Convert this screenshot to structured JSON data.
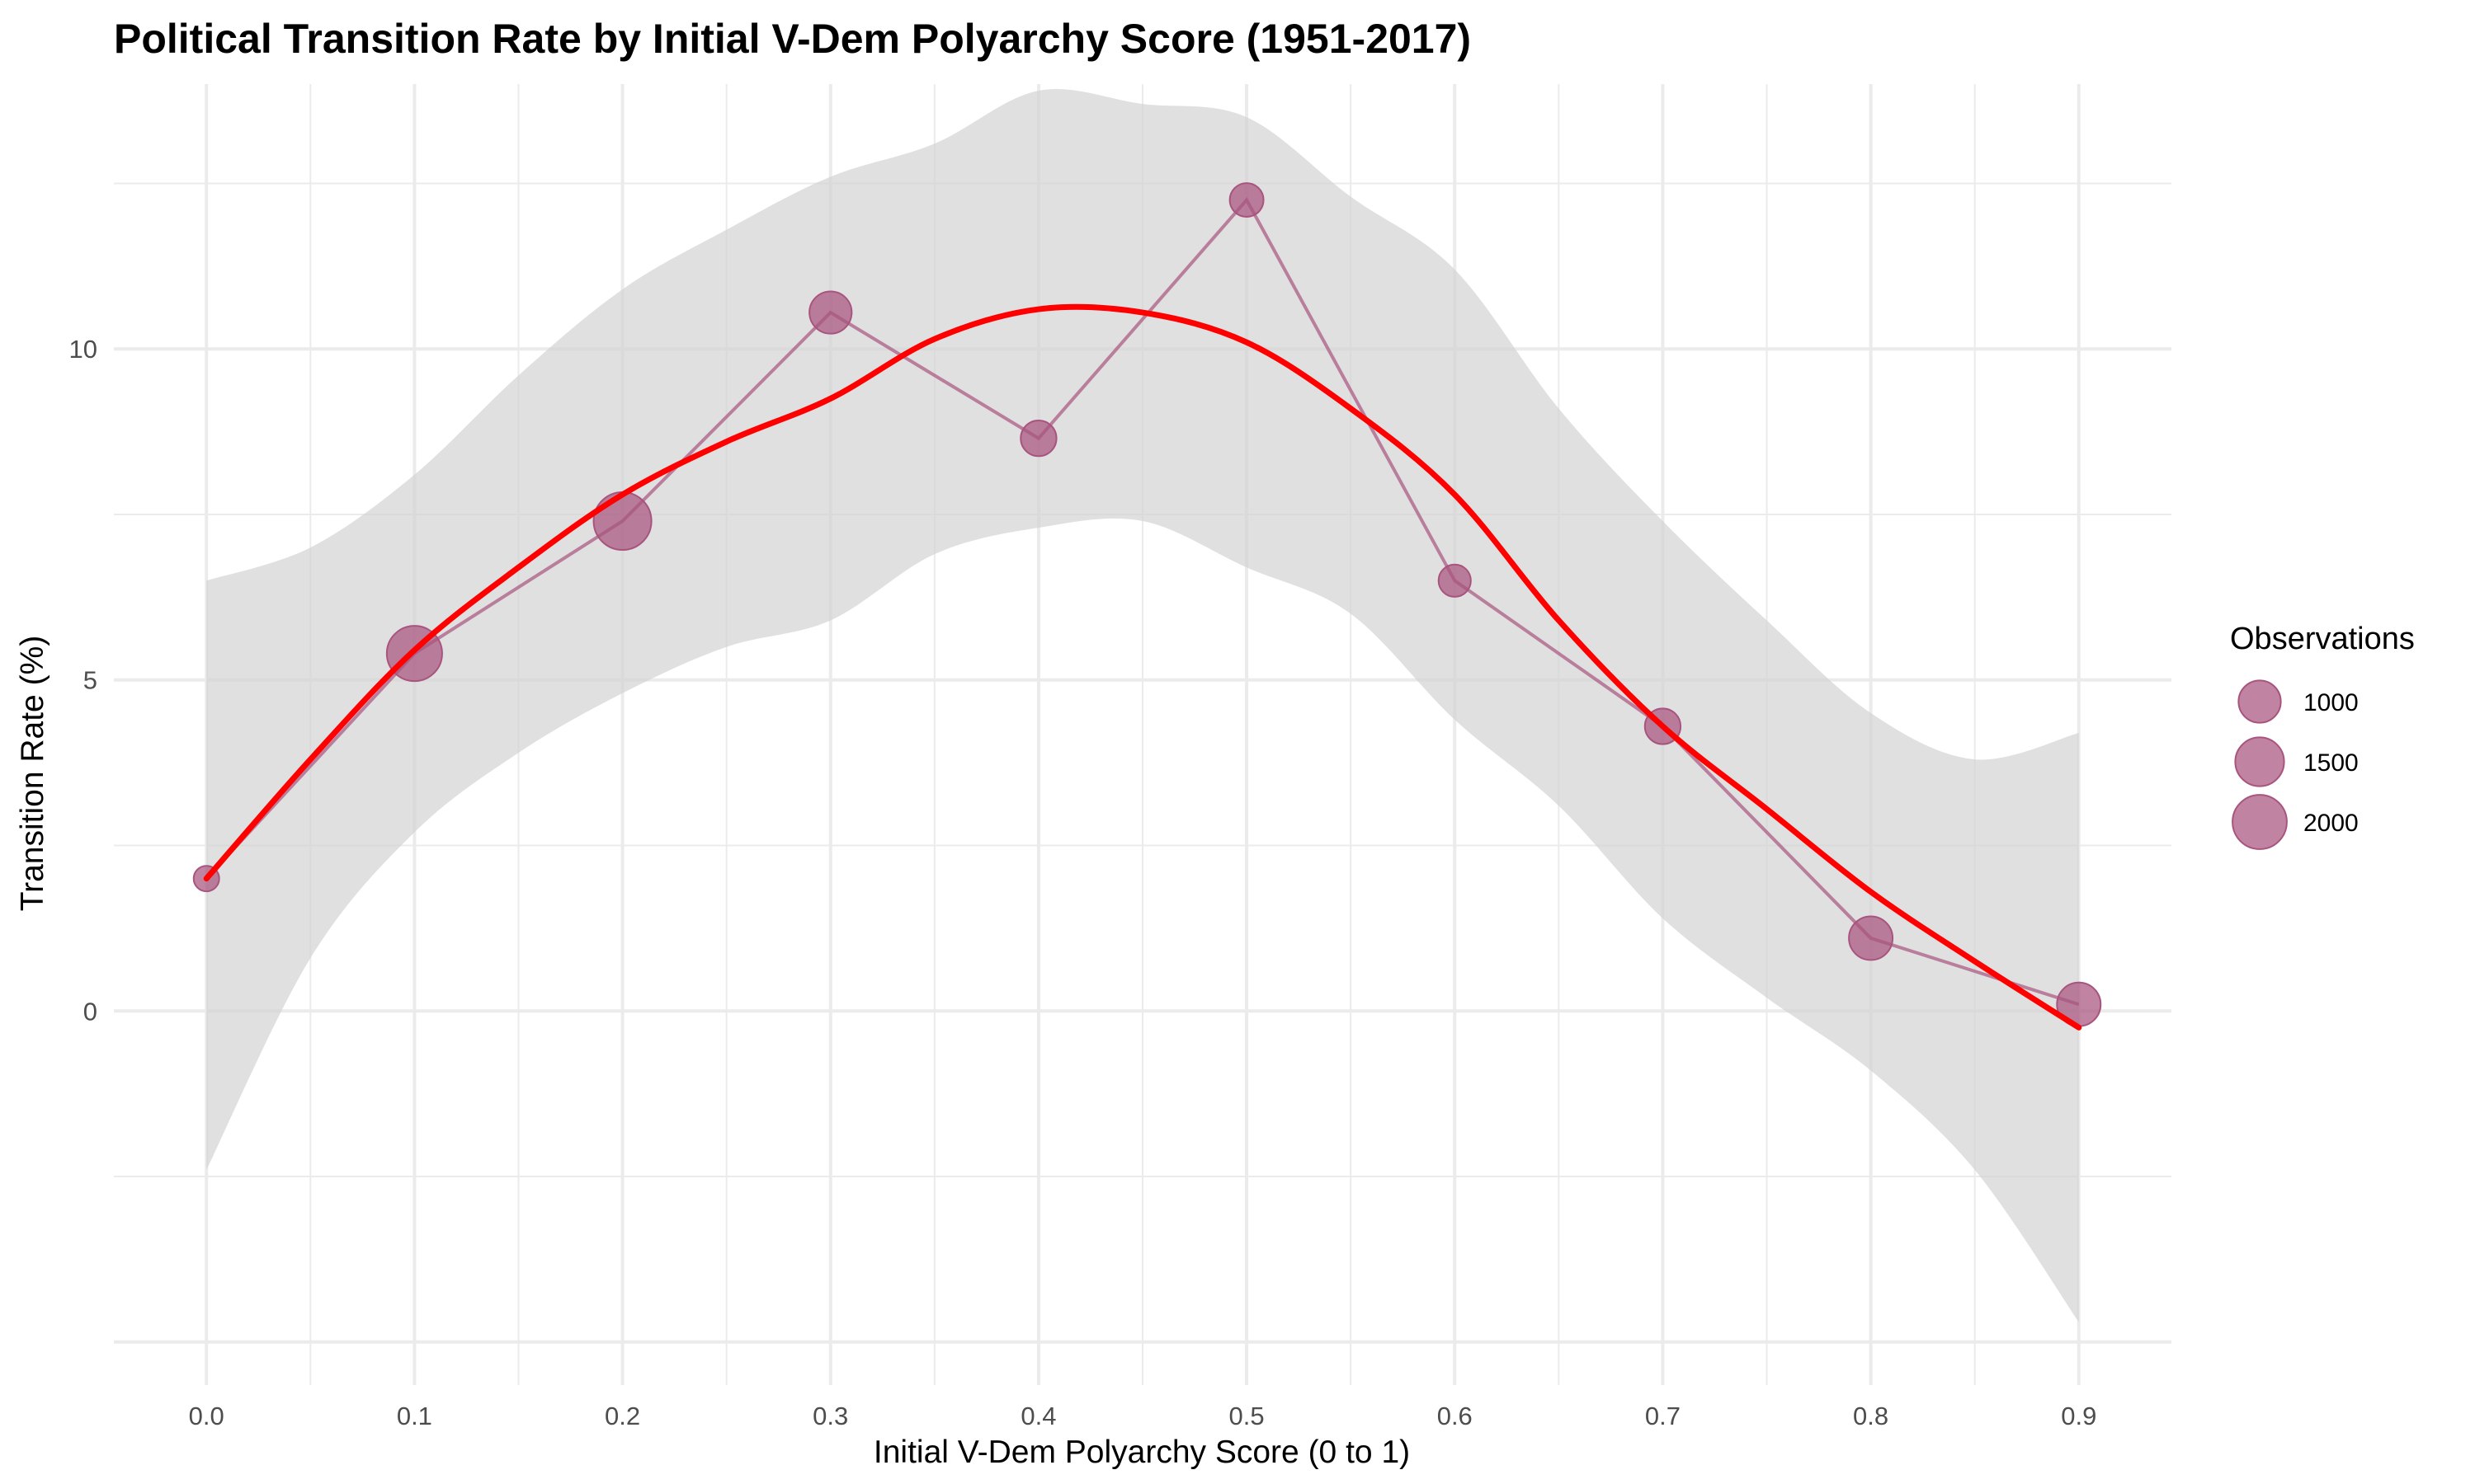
{
  "chart_data": {
    "type": "line",
    "title": "Political Transition Rate by Initial V-Dem Polyarchy Score (1951-2017)",
    "xlabel": "Initial V-Dem Polyarchy Score (0 to 1)",
    "ylabel": "Transition Rate (%)",
    "xlim": [
      -0.0445,
      0.9445
    ],
    "ylim": [
      -5.65,
      14.0
    ],
    "x_ticks": [
      "0.0",
      "0.1",
      "0.2",
      "0.3",
      "0.4",
      "0.5",
      "0.6",
      "0.7",
      "0.8",
      "0.9"
    ],
    "y_ticks": [
      "0",
      "5",
      "10"
    ],
    "grid": true,
    "legend_position": "right",
    "colors": {
      "points": "#a8547e",
      "connector": "#a8547e",
      "smooth": "#ff0000",
      "ribbon": "#d3d3d3",
      "grid": "#ebebeb"
    },
    "series": [
      {
        "kind": "points",
        "x": [
          0.0,
          0.1,
          0.2,
          0.3,
          0.4,
          0.5,
          0.6,
          0.7,
          0.8,
          0.9
        ],
        "y": [
          2.0,
          5.4,
          7.4,
          10.55,
          8.65,
          12.25,
          6.5,
          4.3,
          1.1,
          0.1
        ],
        "observations": [
          180,
          2100,
          2350,
          1000,
          600,
          500,
          430,
          600,
          1100,
          1100
        ]
      },
      {
        "kind": "smooth",
        "x": [
          0.0,
          0.05,
          0.1,
          0.15,
          0.2,
          0.25,
          0.3,
          0.35,
          0.4,
          0.45,
          0.5,
          0.55,
          0.6,
          0.65,
          0.7,
          0.75,
          0.8,
          0.85,
          0.9
        ],
        "y": [
          2.0,
          3.8,
          5.45,
          6.7,
          7.8,
          8.6,
          9.25,
          10.15,
          10.6,
          10.55,
          10.1,
          9.1,
          7.8,
          5.9,
          4.3,
          3.05,
          1.8,
          0.75,
          -0.25
        ],
        "lower": [
          -2.4,
          0.8,
          2.7,
          3.9,
          4.8,
          5.5,
          5.9,
          6.9,
          7.3,
          7.4,
          6.7,
          6.0,
          4.4,
          3.1,
          1.4,
          0.2,
          -0.9,
          -2.4,
          -4.7
        ],
        "upper": [
          6.5,
          7.0,
          8.1,
          9.6,
          10.9,
          11.8,
          12.6,
          13.1,
          13.9,
          13.7,
          13.5,
          12.3,
          11.2,
          9.1,
          7.4,
          5.9,
          4.5,
          3.8,
          4.2
        ]
      }
    ],
    "legend": {
      "title": "Observations",
      "entries": [
        {
          "label": "1000",
          "value": 1000
        },
        {
          "label": "1500",
          "value": 1500
        },
        {
          "label": "2000",
          "value": 2000
        }
      ]
    }
  }
}
